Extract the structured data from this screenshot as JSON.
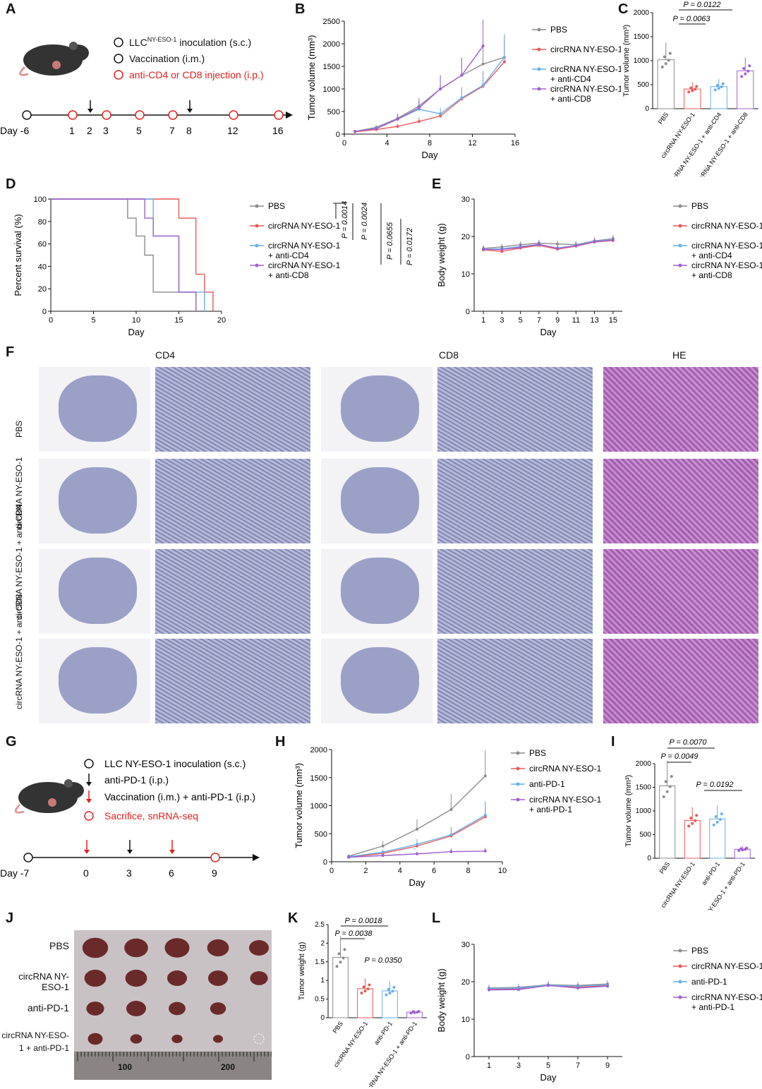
{
  "labels": {
    "A": "A",
    "B": "B",
    "C": "C",
    "D": "D",
    "E": "E",
    "F": "F",
    "G": "G",
    "H": "H",
    "I": "I",
    "J": "J",
    "K": "K",
    "L": "L"
  },
  "A": {
    "legend": [
      {
        "text": "LLC",
        "sup": "NY-ESO-1",
        "rest": " inoculation (s.c.)",
        "color": "#111",
        "marker": "circle"
      },
      {
        "text": "Vaccination (i.m.)",
        "color": "#111",
        "marker": "circle"
      },
      {
        "text": "anti-CD4 or CD8 injection (i.p.)",
        "color": "#e02020",
        "marker": "circle-red"
      }
    ],
    "timeline": {
      "ticks": [
        "Day -6",
        "1",
        "2",
        "3",
        "5",
        "7",
        "8",
        "12",
        "16"
      ],
      "events": [
        {
          "day": "-6",
          "type": "inoculation"
        },
        {
          "day": "1",
          "type": "antibody"
        },
        {
          "day": "2",
          "type": "vaccination"
        },
        {
          "day": "3",
          "type": "antibody"
        },
        {
          "day": "5",
          "type": "antibody"
        },
        {
          "day": "7",
          "type": "antibody"
        },
        {
          "day": "8",
          "type": "vaccination"
        },
        {
          "day": "12",
          "type": "antibody"
        },
        {
          "day": "16",
          "type": "antibody"
        }
      ]
    }
  },
  "colors": {
    "pbs": "#8c8c8c",
    "circ": "#e85a5a",
    "cd4": "#6aaee8",
    "cd8": "#a060d0"
  },
  "chart_data": [
    {
      "panel": "B",
      "type": "line",
      "xlabel": "Day",
      "ylabel": "Tumor volume (mm³)",
      "xlim": [
        0,
        16
      ],
      "ylim": [
        0,
        2500
      ],
      "xticks": [
        0,
        4,
        8,
        12,
        16
      ],
      "yticks": [
        0,
        500,
        1000,
        1500,
        2000,
        2500
      ],
      "series": [
        {
          "name": "PBS",
          "x": [
            1,
            3,
            5,
            7,
            9,
            11,
            13,
            15
          ],
          "y": [
            60,
            150,
            350,
            620,
            1000,
            1300,
            1550,
            1700
          ]
        },
        {
          "name": "circRNA NY-ESO-1",
          "x": [
            1,
            3,
            5,
            7,
            9,
            11,
            13,
            15
          ],
          "y": [
            50,
            100,
            170,
            280,
            400,
            780,
            1060,
            1600
          ]
        },
        {
          "name": "circRNA NY-ESO-1 + anti-CD4",
          "x": [
            1,
            3,
            5,
            7,
            9,
            11,
            13,
            15
          ],
          "y": [
            60,
            130,
            330,
            550,
            450,
            800,
            1080,
            1700
          ]
        },
        {
          "name": "circRNA NY-ESO-1 + anti-CD8",
          "x": [
            1,
            3,
            5,
            7,
            9,
            11,
            13
          ],
          "y": [
            60,
            120,
            330,
            580,
            1000,
            1300,
            1950
          ]
        }
      ]
    },
    {
      "panel": "C",
      "type": "bar",
      "ylabel": "Tumor volume (mm³)",
      "ylim": [
        0,
        2000
      ],
      "yticks": [
        0,
        500,
        1000,
        1500,
        2000
      ],
      "categories": [
        "PBS",
        "circRNA NY-ESO-1",
        "circRNA NY-ESO-1 + anti-CD4",
        "circRNA NY-ESO-1 + anti-CD8"
      ],
      "values": [
        1020,
        410,
        460,
        790
      ],
      "annotations": [
        "P = 0.0122",
        "P = 0.0063"
      ]
    },
    {
      "panel": "D",
      "type": "line",
      "xlabel": "Day",
      "ylabel": "Percent survival (%)",
      "xlim": [
        0,
        20
      ],
      "ylim": [
        0,
        100
      ],
      "xticks": [
        0,
        5,
        10,
        15,
        20
      ],
      "yticks": [
        0,
        20,
        40,
        60,
        80,
        100
      ],
      "series": [
        {
          "name": "PBS",
          "x": [
            0,
            9,
            10,
            11,
            12,
            13,
            17
          ],
          "y": [
            100,
            83,
            67,
            50,
            17,
            17,
            0
          ]
        },
        {
          "name": "circRNA NY-ESO-1",
          "x": [
            0,
            15,
            17,
            18,
            19
          ],
          "y": [
            100,
            83,
            33,
            17,
            0
          ]
        },
        {
          "name": "circRNA NY-ESO-1 + anti-CD4",
          "x": [
            0,
            12,
            15,
            18
          ],
          "y": [
            100,
            67,
            17,
            0
          ]
        },
        {
          "name": "circRNA NY-ESO-1 + anti-CD8",
          "x": [
            0,
            11,
            12,
            15,
            17
          ],
          "y": [
            100,
            83,
            67,
            17,
            0
          ]
        }
      ],
      "annotations": [
        "P = 0.0014",
        "P = 0.0024",
        "P = 0.0655",
        "P = 0.0172"
      ]
    },
    {
      "panel": "E",
      "type": "line",
      "xlabel": "Day",
      "ylabel": "Body weight (g)",
      "xlim": [
        0,
        16
      ],
      "ylim": [
        0,
        30
      ],
      "xticks": [
        1,
        3,
        5,
        7,
        9,
        11,
        13,
        15
      ],
      "yticks": [
        0,
        10,
        20,
        30
      ],
      "series": [
        {
          "name": "PBS",
          "x": [
            1,
            3,
            5,
            7,
            9,
            11,
            13,
            15
          ],
          "y": [
            16.8,
            17.2,
            17.8,
            18.2,
            18.0,
            17.8,
            18.8,
            19.4
          ]
        },
        {
          "name": "circRNA NY-ESO-1",
          "x": [
            1,
            3,
            5,
            7,
            9,
            11,
            13,
            15
          ],
          "y": [
            16.4,
            16.0,
            16.9,
            17.6,
            16.6,
            17.4,
            18.5,
            18.9
          ]
        },
        {
          "name": "circRNA NY-ESO-1 + anti-CD4",
          "x": [
            1,
            3,
            5,
            7,
            9,
            11,
            13,
            15
          ],
          "y": [
            16.6,
            16.7,
            17.3,
            17.8,
            16.9,
            17.6,
            18.7,
            19.1
          ]
        },
        {
          "name": "circRNA NY-ESO-1 + anti-CD8",
          "x": [
            1,
            3,
            5,
            7,
            9,
            11,
            13,
            15
          ],
          "y": [
            16.5,
            16.5,
            17.1,
            17.9,
            16.8,
            17.5,
            18.6,
            19.0
          ]
        }
      ]
    },
    {
      "panel": "H",
      "type": "line",
      "xlabel": "Day",
      "ylabel": "Tumor volume (mm³)",
      "xlim": [
        0,
        10
      ],
      "ylim": [
        0,
        2000
      ],
      "xticks": [
        0,
        2,
        4,
        6,
        8,
        10
      ],
      "yticks": [
        0,
        500,
        1000,
        1500,
        2000
      ],
      "series": [
        {
          "name": "PBS",
          "x": [
            1,
            3,
            5,
            7,
            9
          ],
          "y": [
            100,
            280,
            580,
            930,
            1530
          ]
        },
        {
          "name": "circRNA NY-ESO-1",
          "x": [
            1,
            3,
            5,
            7,
            9
          ],
          "y": [
            80,
            150,
            280,
            460,
            800
          ]
        },
        {
          "name": "anti-PD-1",
          "x": [
            1,
            3,
            5,
            7,
            9
          ],
          "y": [
            90,
            170,
            310,
            480,
            830
          ]
        },
        {
          "name": "circRNA NY-ESO-1 + anti-PD-1",
          "x": [
            1,
            3,
            5,
            7,
            9
          ],
          "y": [
            80,
            110,
            140,
            180,
            190
          ]
        }
      ]
    },
    {
      "panel": "I",
      "type": "bar",
      "ylabel": "Tumor volume (mm³)",
      "ylim": [
        0,
        2000
      ],
      "yticks": [
        0,
        500,
        1000,
        1500,
        2000
      ],
      "categories": [
        "PBS",
        "circRNA NY-ESO-1",
        "anti-PD-1",
        "circRNA NY-ESO-1 + anti-PD-1"
      ],
      "values": [
        1530,
        800,
        830,
        190
      ],
      "annotations": [
        "P = 0.0070",
        "P = 0.0049",
        "P = 0.0192"
      ]
    },
    {
      "panel": "K",
      "type": "bar",
      "ylabel": "Tumor weight (g)",
      "ylim": [
        0,
        2.5
      ],
      "yticks": [
        0.0,
        0.5,
        1.0,
        1.5,
        2.0,
        2.5
      ],
      "categories": [
        "PBS",
        "circRNA NY-ESO-1",
        "anti-PD-1",
        "circRNA NY-ESO-1 + anti-PD-1"
      ],
      "values": [
        1.62,
        0.78,
        0.72,
        0.15
      ],
      "annotations": [
        "P = 0.0018",
        "P = 0.0038",
        "P = 0.0350"
      ]
    },
    {
      "panel": "L",
      "type": "line",
      "xlabel": "Day",
      "ylabel": "Body weight (g)",
      "xlim": [
        0,
        10
      ],
      "ylim": [
        0,
        30
      ],
      "xticks": [
        1,
        3,
        5,
        7,
        9
      ],
      "yticks": [
        0,
        10,
        20,
        30
      ],
      "series": [
        {
          "name": "PBS",
          "x": [
            1,
            3,
            5,
            7,
            9
          ],
          "y": [
            18.3,
            18.5,
            19.2,
            19.0,
            19.4
          ]
        },
        {
          "name": "circRNA NY-ESO-1",
          "x": [
            1,
            3,
            5,
            7,
            9
          ],
          "y": [
            18.0,
            18.1,
            19.0,
            18.6,
            19.0
          ]
        },
        {
          "name": "anti-PD-1",
          "x": [
            1,
            3,
            5,
            7,
            9
          ],
          "y": [
            18.2,
            18.3,
            19.1,
            18.8,
            19.2
          ]
        },
        {
          "name": "circRNA NY-ESO-1 + anti-PD-1",
          "x": [
            1,
            3,
            5,
            7,
            9
          ],
          "y": [
            17.8,
            17.9,
            19.0,
            18.3,
            18.8
          ]
        }
      ]
    }
  ],
  "F": {
    "columns": [
      "CD4",
      "CD8",
      "HE"
    ],
    "rows": [
      "PBS",
      "circRNA NY-ESO-1",
      "circRNA NY-ESO-1 + anti-CD4",
      "circRNA NY-ESO-1 + anti-CD8"
    ]
  },
  "G": {
    "legend": [
      {
        "text": "LLC NY-ESO-1 inoculation (s.c.)",
        "color": "#111"
      },
      {
        "text": "anti-PD-1 (i.p.)",
        "color": "#111"
      },
      {
        "text": "Vaccination (i.m.) + anti-PD-1 (i.p.)",
        "color": "#111"
      },
      {
        "text": "Sacrifice, snRNA-seq",
        "color": "#e02020"
      }
    ],
    "ticks": [
      "Day -7",
      "0",
      "3",
      "6",
      "9"
    ]
  },
  "J": {
    "rows": [
      "PBS",
      "circRNA NY-ESO-1",
      "anti-PD-1",
      "circRNA NY-ESO-1 + anti-PD-1"
    ],
    "ruler": [
      "100",
      "200"
    ]
  }
}
